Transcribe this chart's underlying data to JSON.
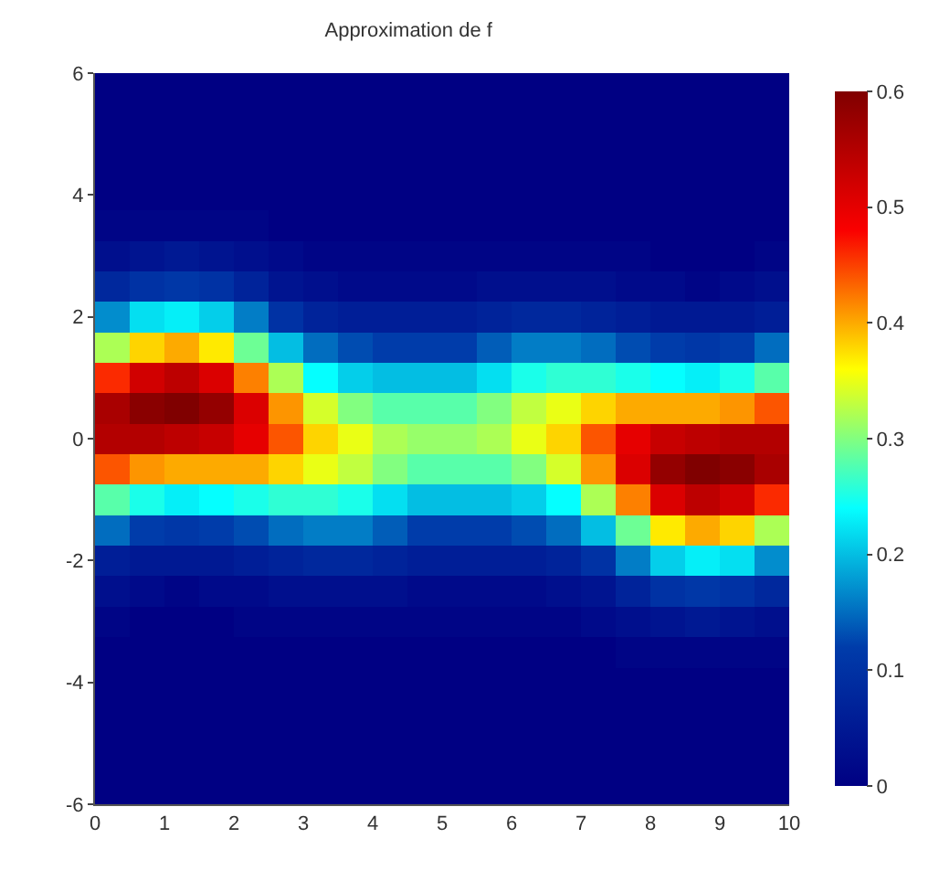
{
  "chart_data": {
    "type": "heatmap",
    "title": "Approximation de f",
    "x": [
      0.25,
      0.75,
      1.25,
      1.75,
      2.25,
      2.75,
      3.25,
      3.75,
      4.25,
      4.75,
      5.25,
      5.75,
      6.25,
      6.75,
      7.25,
      7.75,
      8.25,
      8.75,
      9.25,
      9.75
    ],
    "y_categories": [
      "6",
      null,
      null,
      null,
      "4",
      null,
      null,
      null,
      "2",
      null,
      null,
      null,
      "0",
      null,
      null,
      null,
      "-2",
      null,
      null,
      null,
      "-4",
      null,
      null,
      null,
      "-6"
    ],
    "cells": [
      [
        0,
        0,
        0,
        0,
        0,
        0,
        0,
        0,
        0,
        0,
        0,
        0,
        0,
        0,
        0,
        0,
        0,
        0,
        0,
        0
      ],
      [
        0,
        0,
        0,
        0,
        0,
        0,
        0,
        0,
        0,
        0,
        0,
        0,
        0,
        0,
        0,
        0,
        0,
        0,
        0,
        0
      ],
      [
        0,
        0,
        0,
        0,
        0,
        0,
        0,
        0,
        0,
        0,
        0,
        0,
        0,
        0,
        0,
        0,
        0,
        0,
        0,
        0
      ],
      [
        0,
        0,
        0,
        0,
        0,
        0,
        0,
        0,
        0,
        0,
        0,
        0,
        0,
        0,
        0,
        0,
        0,
        0,
        0,
        0
      ],
      [
        0,
        0,
        0,
        0,
        0,
        0,
        0,
        0,
        0,
        0,
        0,
        0,
        0,
        0,
        0,
        0,
        0,
        0,
        0,
        0
      ],
      [
        0.01,
        0.01,
        0.01,
        0.01,
        0.01,
        0,
        0,
        0,
        0,
        0,
        0,
        0,
        0,
        0,
        0,
        0,
        0,
        0,
        0,
        0
      ],
      [
        0.03,
        0.04,
        0.05,
        0.04,
        0.03,
        0.02,
        0.01,
        0.01,
        0.01,
        0.01,
        0.01,
        0.01,
        0.01,
        0.01,
        0.01,
        0.01,
        0,
        0,
        0,
        0.01
      ],
      [
        0.08,
        0.1,
        0.11,
        0.1,
        0.07,
        0.04,
        0.03,
        0.02,
        0.02,
        0.02,
        0.02,
        0.03,
        0.03,
        0.03,
        0.03,
        0.02,
        0.02,
        0.01,
        0.02,
        0.03
      ],
      [
        0.17,
        0.22,
        0.23,
        0.21,
        0.16,
        0.1,
        0.07,
        0.06,
        0.06,
        0.06,
        0.06,
        0.07,
        0.08,
        0.08,
        0.07,
        0.06,
        0.05,
        0.05,
        0.05,
        0.06
      ],
      [
        0.32,
        0.38,
        0.4,
        0.37,
        0.29,
        0.2,
        0.15,
        0.13,
        0.12,
        0.12,
        0.12,
        0.14,
        0.16,
        0.16,
        0.15,
        0.13,
        0.12,
        0.11,
        0.12,
        0.15
      ],
      [
        0.46,
        0.52,
        0.54,
        0.51,
        0.42,
        0.32,
        0.24,
        0.21,
        0.2,
        0.2,
        0.2,
        0.22,
        0.25,
        0.26,
        0.26,
        0.25,
        0.24,
        0.23,
        0.25,
        0.28
      ],
      [
        0.56,
        0.59,
        0.6,
        0.58,
        0.51,
        0.41,
        0.34,
        0.3,
        0.28,
        0.28,
        0.28,
        0.3,
        0.33,
        0.35,
        0.38,
        0.4,
        0.4,
        0.4,
        0.41,
        0.44
      ],
      [
        0.55,
        0.55,
        0.54,
        0.53,
        0.5,
        0.44,
        0.38,
        0.35,
        0.32,
        0.31,
        0.31,
        0.32,
        0.35,
        0.38,
        0.44,
        0.5,
        0.53,
        0.54,
        0.55,
        0.55
      ],
      [
        0.44,
        0.41,
        0.4,
        0.4,
        0.4,
        0.38,
        0.35,
        0.33,
        0.3,
        0.28,
        0.28,
        0.28,
        0.3,
        0.34,
        0.41,
        0.51,
        0.58,
        0.6,
        0.59,
        0.56
      ],
      [
        0.28,
        0.25,
        0.23,
        0.24,
        0.25,
        0.26,
        0.26,
        0.25,
        0.22,
        0.2,
        0.2,
        0.2,
        0.21,
        0.24,
        0.32,
        0.42,
        0.51,
        0.54,
        0.52,
        0.46
      ],
      [
        0.15,
        0.12,
        0.11,
        0.12,
        0.13,
        0.15,
        0.16,
        0.16,
        0.14,
        0.12,
        0.12,
        0.12,
        0.13,
        0.15,
        0.2,
        0.29,
        0.37,
        0.4,
        0.38,
        0.32
      ],
      [
        0.06,
        0.05,
        0.05,
        0.05,
        0.06,
        0.07,
        0.08,
        0.08,
        0.07,
        0.06,
        0.06,
        0.06,
        0.06,
        0.07,
        0.1,
        0.16,
        0.21,
        0.23,
        0.22,
        0.17
      ],
      [
        0.03,
        0.02,
        0.01,
        0.02,
        0.02,
        0.03,
        0.03,
        0.03,
        0.03,
        0.02,
        0.02,
        0.02,
        0.02,
        0.03,
        0.04,
        0.07,
        0.1,
        0.11,
        0.1,
        0.08
      ],
      [
        0.01,
        0,
        0,
        0,
        0.01,
        0.01,
        0.01,
        0.01,
        0.01,
        0.01,
        0.01,
        0.01,
        0.01,
        0.01,
        0.02,
        0.03,
        0.04,
        0.05,
        0.04,
        0.03
      ],
      [
        0,
        0,
        0,
        0,
        0,
        0,
        0,
        0,
        0,
        0,
        0,
        0,
        0,
        0,
        0,
        0.01,
        0.01,
        0.01,
        0.01,
        0.01
      ],
      [
        0,
        0,
        0,
        0,
        0,
        0,
        0,
        0,
        0,
        0,
        0,
        0,
        0,
        0,
        0,
        0,
        0,
        0,
        0,
        0
      ],
      [
        0,
        0,
        0,
        0,
        0,
        0,
        0,
        0,
        0,
        0,
        0,
        0,
        0,
        0,
        0,
        0,
        0,
        0,
        0,
        0
      ],
      [
        0,
        0,
        0,
        0,
        0,
        0,
        0,
        0,
        0,
        0,
        0,
        0,
        0,
        0,
        0,
        0,
        0,
        0,
        0,
        0
      ],
      [
        0,
        0,
        0,
        0,
        0,
        0,
        0,
        0,
        0,
        0,
        0,
        0,
        0,
        0,
        0,
        0,
        0,
        0,
        0,
        0
      ],
      [
        0,
        0,
        0,
        0,
        0,
        0,
        0,
        0,
        0,
        0,
        0,
        0,
        0,
        0,
        0,
        0,
        0,
        0,
        0,
        0
      ]
    ],
    "xlim": [
      0,
      10
    ],
    "xticks": [
      0,
      1,
      2,
      3,
      4,
      5,
      6,
      7,
      8,
      9,
      10
    ],
    "clim": [
      0,
      0.6
    ],
    "cticks": [
      0,
      0.1,
      0.2,
      0.3,
      0.4,
      0.5,
      0.6
    ]
  }
}
